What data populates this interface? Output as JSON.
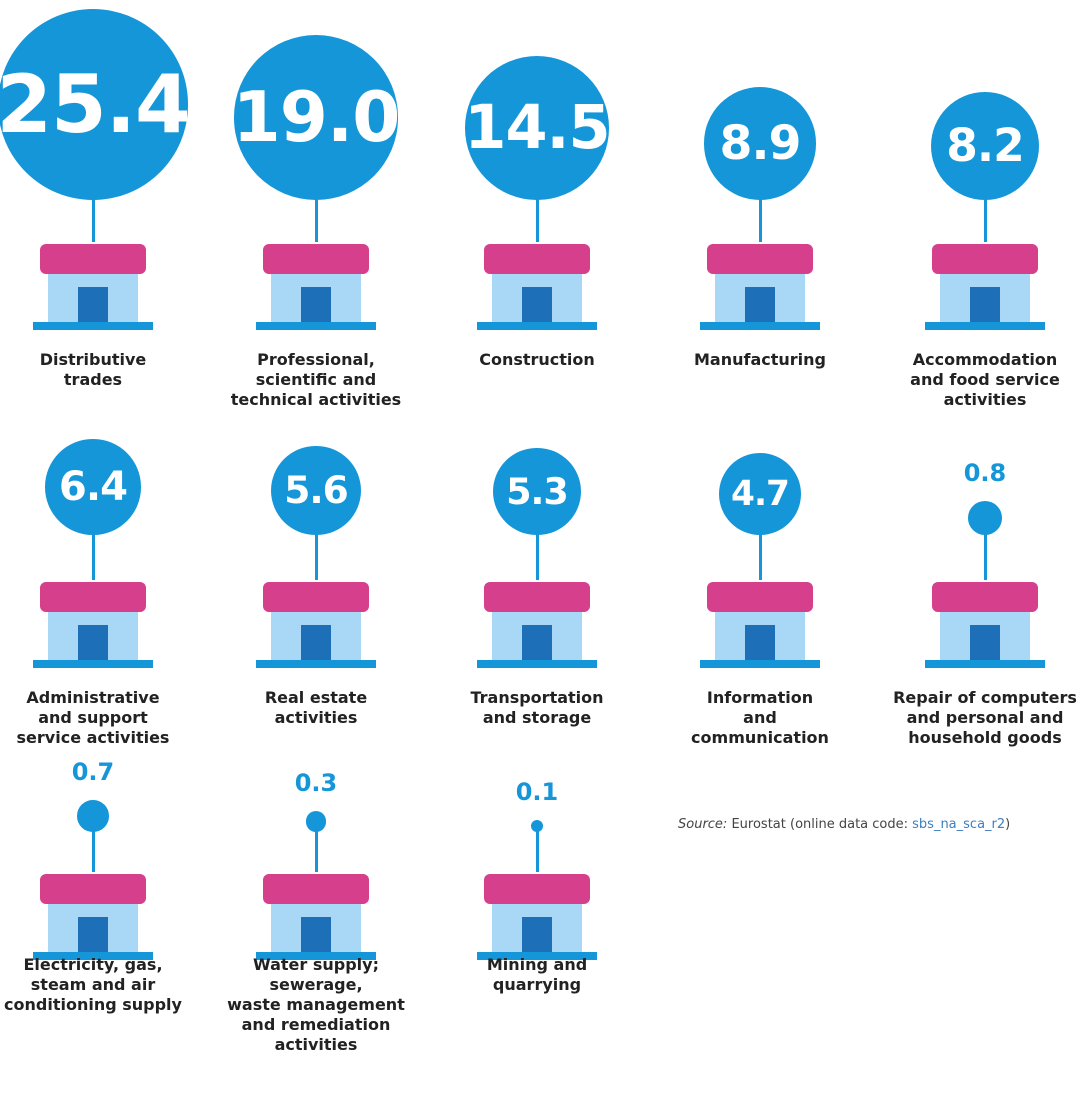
{
  "chart_data": {
    "type": "bubble",
    "color": "#1496d8",
    "categories": [
      "Distributive\ntrades",
      "Professional,\nscientific and\ntechnical activities",
      "Construction",
      "Manufacturing",
      "Accommodation\nand food service\nactivities",
      "Administrative\nand support\nservice activities",
      "Real estate\nactivities",
      "Transportation\nand storage",
      "Information\nand\ncommunication",
      "Repair of computers\nand personal and\nhousehold goods",
      "Electricity, gas,\nsteam and air\nconditioning supply",
      "Water supply;\nsewerage,\nwaste management\nand remediation\nactivities",
      "Mining and\nquarrying"
    ],
    "values": [
      25.4,
      19.0,
      14.5,
      8.9,
      8.2,
      6.4,
      5.6,
      5.3,
      4.7,
      0.8,
      0.7,
      0.3,
      0.1
    ],
    "value_labels": [
      "25.4",
      "19.0",
      "14.5",
      "8.9",
      "8.2",
      "6.4",
      "5.6",
      "5.3",
      "4.7",
      "0.8",
      "0.7",
      "0.3",
      "0.1"
    ],
    "source": {
      "label": "Source:",
      "text": "Eurostat (online data code: ",
      "link": "sbs_na_sca_r2",
      "close": ")"
    }
  }
}
